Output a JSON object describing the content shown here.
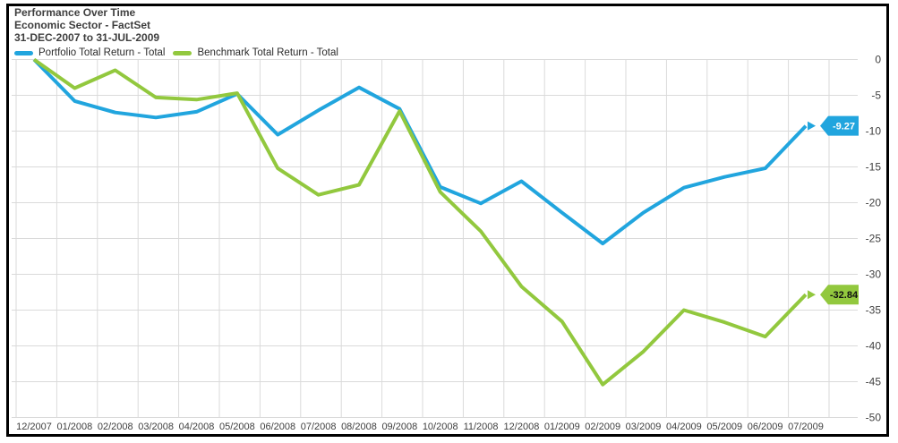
{
  "header": {
    "title": "Performance Over Time",
    "subtitle": "Economic Sector - FactSet",
    "date_range": "31-DEC-2007 to 31-JUL-2009"
  },
  "legend": {
    "items": [
      {
        "label": "Portfolio Total Return - Total",
        "color": "#21A5DE"
      },
      {
        "label": "Benchmark Total Return - Total",
        "color": "#92C83E"
      }
    ]
  },
  "chart_data": {
    "type": "line",
    "title": "Performance Over Time",
    "subtitle": "Economic Sector - FactSet",
    "date_range": "31-DEC-2007 to 31-JUL-2009",
    "categories": [
      "12/2007",
      "01/2008",
      "02/2008",
      "03/2008",
      "04/2008",
      "05/2008",
      "06/2008",
      "07/2008",
      "08/2008",
      "09/2008",
      "10/2008",
      "11/2008",
      "12/2008",
      "01/2009",
      "02/2009",
      "03/2009",
      "04/2009",
      "05/2009",
      "06/2009",
      "07/2009"
    ],
    "series": [
      {
        "name": "Portfolio Total Return - Total",
        "color": "#21A5DE",
        "values": [
          0,
          -5.8,
          -7.4,
          -8.1,
          -7.3,
          -4.8,
          -10.5,
          -7.1,
          -3.9,
          -6.9,
          -17.8,
          -20.1,
          -17.0,
          -21.4,
          -25.7,
          -21.4,
          -17.9,
          -16.4,
          -15.2,
          -9.27
        ],
        "end_label": "-9.27",
        "end_label_text_color": "#ffffff"
      },
      {
        "name": "Benchmark Total Return - Total",
        "color": "#92C83E",
        "values": [
          0,
          -4.0,
          -1.5,
          -5.3,
          -5.6,
          -4.7,
          -15.2,
          -18.9,
          -17.5,
          -7.2,
          -18.5,
          -24.0,
          -31.7,
          -36.6,
          -45.4,
          -40.8,
          -35.0,
          -36.7,
          -38.7,
          -32.84
        ],
        "end_label": "-32.84",
        "end_label_text_color": "#111111"
      }
    ],
    "y_ticks": [
      0,
      -5,
      -10,
      -15,
      -20,
      -25,
      -30,
      -35,
      -40,
      -45,
      -50
    ],
    "ylim": [
      -50,
      0
    ],
    "grid": true,
    "legend_position": "top-left",
    "y_axis_side": "right"
  },
  "colors": {
    "grid": "#DADADA",
    "axis_text": "#404040",
    "frame": "#000000",
    "background": "#FFFFFF"
  }
}
